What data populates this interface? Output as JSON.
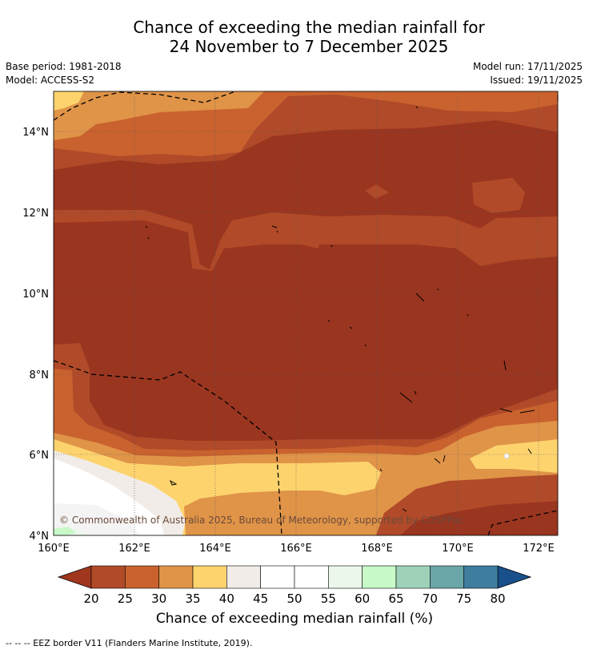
{
  "title_line1": "Chance of exceeding the median rainfall for",
  "title_line2": "24 November to 7 December 2025",
  "meta": {
    "base_period": "Base period: 1981-2018",
    "model": "Model: ACCESS-S2",
    "model_run": "Model run: 17/11/2025",
    "issued": "Issued: 19/11/2025"
  },
  "map": {
    "copyright": "© Commonwealth of Australia 2025, Bureau of Meteorology, supported by COSPPac",
    "lat_labels": [
      "14°N",
      "12°N",
      "10°N",
      "8°N",
      "6°N",
      "4°N"
    ],
    "lat_values": [
      14,
      12,
      10,
      8,
      6,
      4
    ],
    "lon_labels": [
      "160°E",
      "162°E",
      "164°E",
      "166°E",
      "168°E",
      "170°E",
      "172°E"
    ],
    "lon_values": [
      160,
      162,
      164,
      166,
      168,
      170,
      172
    ],
    "lat_range": [
      4,
      15
    ],
    "lon_range": [
      160,
      172.5
    ]
  },
  "colorbar": {
    "title": "Chance of exceeding median rainfall (%)",
    "ticks": [
      "20",
      "25",
      "30",
      "35",
      "40",
      "45",
      "50",
      "55",
      "60",
      "65",
      "70",
      "75",
      "80"
    ],
    "colors": [
      "#b04a28",
      "#c9622e",
      "#e09448",
      "#fdd36e",
      "#f1ece8",
      "#ffffff",
      "#ffffff",
      "#eaf7ea",
      "#c8f9c8",
      "#9dd2b8",
      "#6aa6a8",
      "#3f7d9e"
    ],
    "under_color": "#a0361e",
    "over_color": "#19508b"
  },
  "legend_footer": "--  --  -- EEZ border V11 (Flanders Marine Institute, 2019)."
}
